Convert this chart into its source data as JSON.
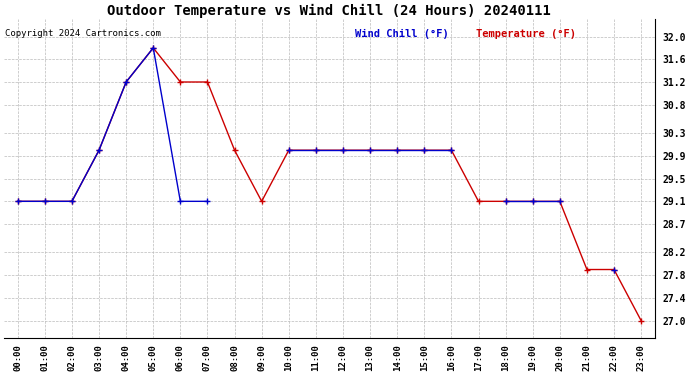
{
  "title": "Outdoor Temperature vs Wind Chill (24 Hours) 20240111",
  "copyright_text": "Copyright 2024 Cartronics.com",
  "legend_wind_chill": "Wind Chill (°F)",
  "legend_temperature": "Temperature (°F)",
  "hours": [
    "00:00",
    "01:00",
    "02:00",
    "03:00",
    "04:00",
    "05:00",
    "06:00",
    "07:00",
    "08:00",
    "09:00",
    "10:00",
    "11:00",
    "12:00",
    "13:00",
    "14:00",
    "15:00",
    "16:00",
    "17:00",
    "18:00",
    "19:00",
    "20:00",
    "21:00",
    "22:00",
    "23:00"
  ],
  "temp_x": [
    0,
    1,
    2,
    3,
    4,
    5,
    6,
    7,
    8,
    9,
    10,
    11,
    12,
    13,
    14,
    15,
    16,
    17,
    18,
    19,
    20,
    21,
    22,
    23
  ],
  "temp_y": [
    29.1,
    29.1,
    29.1,
    30.0,
    31.2,
    31.8,
    31.2,
    31.2,
    30.0,
    29.1,
    30.0,
    30.0,
    30.0,
    30.0,
    30.0,
    30.0,
    30.0,
    29.1,
    29.1,
    29.1,
    29.1,
    27.9,
    27.9,
    27.0
  ],
  "wc_segments": [
    {
      "x": [
        0,
        1,
        2,
        3,
        4,
        5,
        6,
        7
      ],
      "y": [
        29.1,
        29.1,
        29.1,
        30.0,
        31.2,
        31.8,
        29.1,
        29.1
      ]
    },
    {
      "x": [
        10,
        11,
        12,
        13,
        14,
        15,
        16
      ],
      "y": [
        30.0,
        30.0,
        30.0,
        30.0,
        30.0,
        30.0,
        30.0
      ]
    },
    {
      "x": [
        18,
        19,
        20
      ],
      "y": [
        29.1,
        29.1,
        29.1
      ]
    },
    {
      "x": [
        22
      ],
      "y": [
        27.9
      ]
    }
  ],
  "ylim_min": 26.7,
  "ylim_max": 32.3,
  "yticks": [
    27.0,
    27.4,
    27.8,
    28.2,
    28.7,
    29.1,
    29.5,
    29.9,
    30.3,
    30.8,
    31.2,
    31.6,
    32.0
  ],
  "ytick_labels": [
    "27.0",
    "27.4",
    "27.8",
    "28.2",
    "28.7",
    "29.1",
    "29.5",
    "29.9",
    "30.3",
    "30.8",
    "31.2",
    "31.6",
    "32.0"
  ],
  "temp_color": "#cc0000",
  "wind_color": "#0000cc",
  "bg_color": "#ffffff",
  "grid_color": "#bbbbbb",
  "title_color": "#000000"
}
